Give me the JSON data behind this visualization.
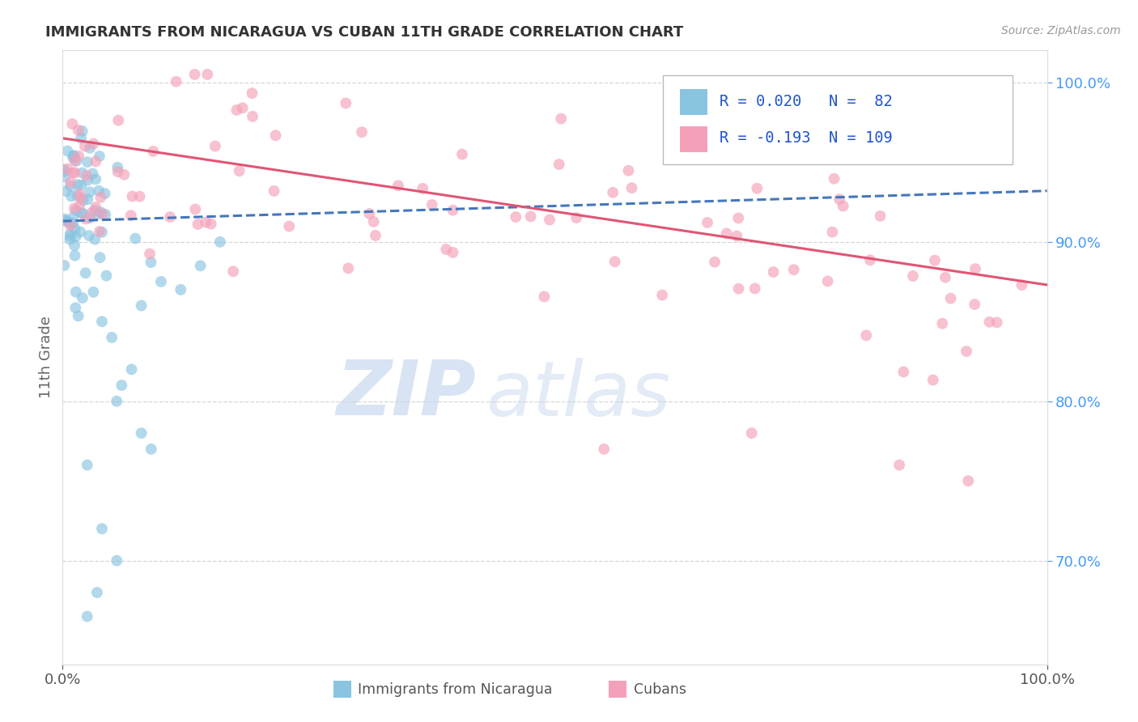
{
  "title": "IMMIGRANTS FROM NICARAGUA VS CUBAN 11TH GRADE CORRELATION CHART",
  "source_text": "Source: ZipAtlas.com",
  "ylabel": "11th Grade",
  "legend1_label": "Immigrants from Nicaragua",
  "legend2_label": "Cubans",
  "R1": 0.02,
  "N1": 82,
  "R2": -0.193,
  "N2": 109,
  "xlim": [
    0.0,
    1.0
  ],
  "ylim": [
    0.635,
    1.02
  ],
  "right_yticks": [
    0.7,
    0.8,
    0.9,
    1.0
  ],
  "right_yticklabels": [
    "70.0%",
    "80.0%",
    "90.0%",
    "100.0%"
  ],
  "color_nicaragua": "#89c4e1",
  "color_cuba": "#f4a0b8",
  "color_nicaragua_line": "#4477bb",
  "color_cuba_line": "#e05575",
  "watermark_zip": "ZIP",
  "watermark_atlas": "atlas",
  "watermark_color_zip": "#c8d8ee",
  "watermark_color_atlas": "#c8d8ee",
  "background_color": "#ffffff",
  "grid_color": "#cccccc",
  "title_color": "#333333",
  "axis_label_color": "#666666",
  "legend_R_color": "#2255cc",
  "right_tick_color": "#4499ff",
  "nic_line_start_y": 0.913,
  "nic_line_end_y": 0.932,
  "cub_line_start_y": 0.965,
  "cub_line_end_y": 0.873
}
